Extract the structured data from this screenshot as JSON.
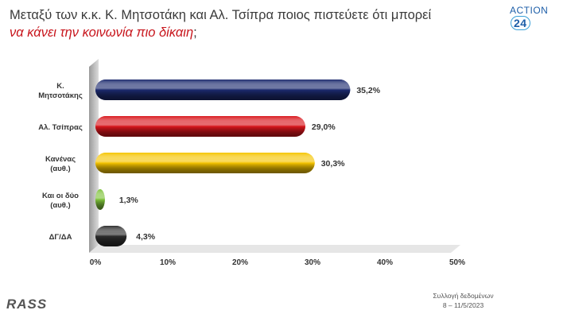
{
  "title": {
    "line1": "Μεταξύ των κ.κ. Κ. Μητσοτάκη και Αλ. Τσίπρα ποιος πιστεύετε ότι μπορεί",
    "line2": "να κάνει την κοινωνία πιο δίκαιη",
    "line2_end": ";"
  },
  "logo": {
    "text": "ACTION",
    "number": "24"
  },
  "brand": "RASS",
  "footnote": {
    "line1": "Συλλογή δεδομένων",
    "line2": "8 – 11/5/2023"
  },
  "colors": {
    "bar1": "#1c2a6e",
    "bar2": "#d9161c",
    "bar3": "#f5c400",
    "bar4": "#7ec23a",
    "bar5": "#2d2d2d",
    "wall": "#c8c8c8"
  },
  "chart_data": {
    "type": "bar",
    "orientation": "horizontal",
    "categories": [
      [
        "Κ.",
        "Μητσοτάκης"
      ],
      [
        "Αλ. Τσίπρας"
      ],
      [
        "Κανένας",
        "(αυθ.)"
      ],
      [
        "Και οι δύο",
        "(αυθ.)"
      ],
      [
        "ΔΓ/ΔΑ"
      ]
    ],
    "values": [
      35.2,
      29.0,
      30.3,
      1.3,
      4.3
    ],
    "value_labels": [
      "35,2%",
      "29,0%",
      "30,3%",
      "1,3%",
      "4,3%"
    ],
    "xlim": [
      0,
      50
    ],
    "xticks": [
      "0%",
      "10%",
      "20%",
      "30%",
      "40%",
      "50%"
    ],
    "grid": false,
    "legend": "none"
  }
}
